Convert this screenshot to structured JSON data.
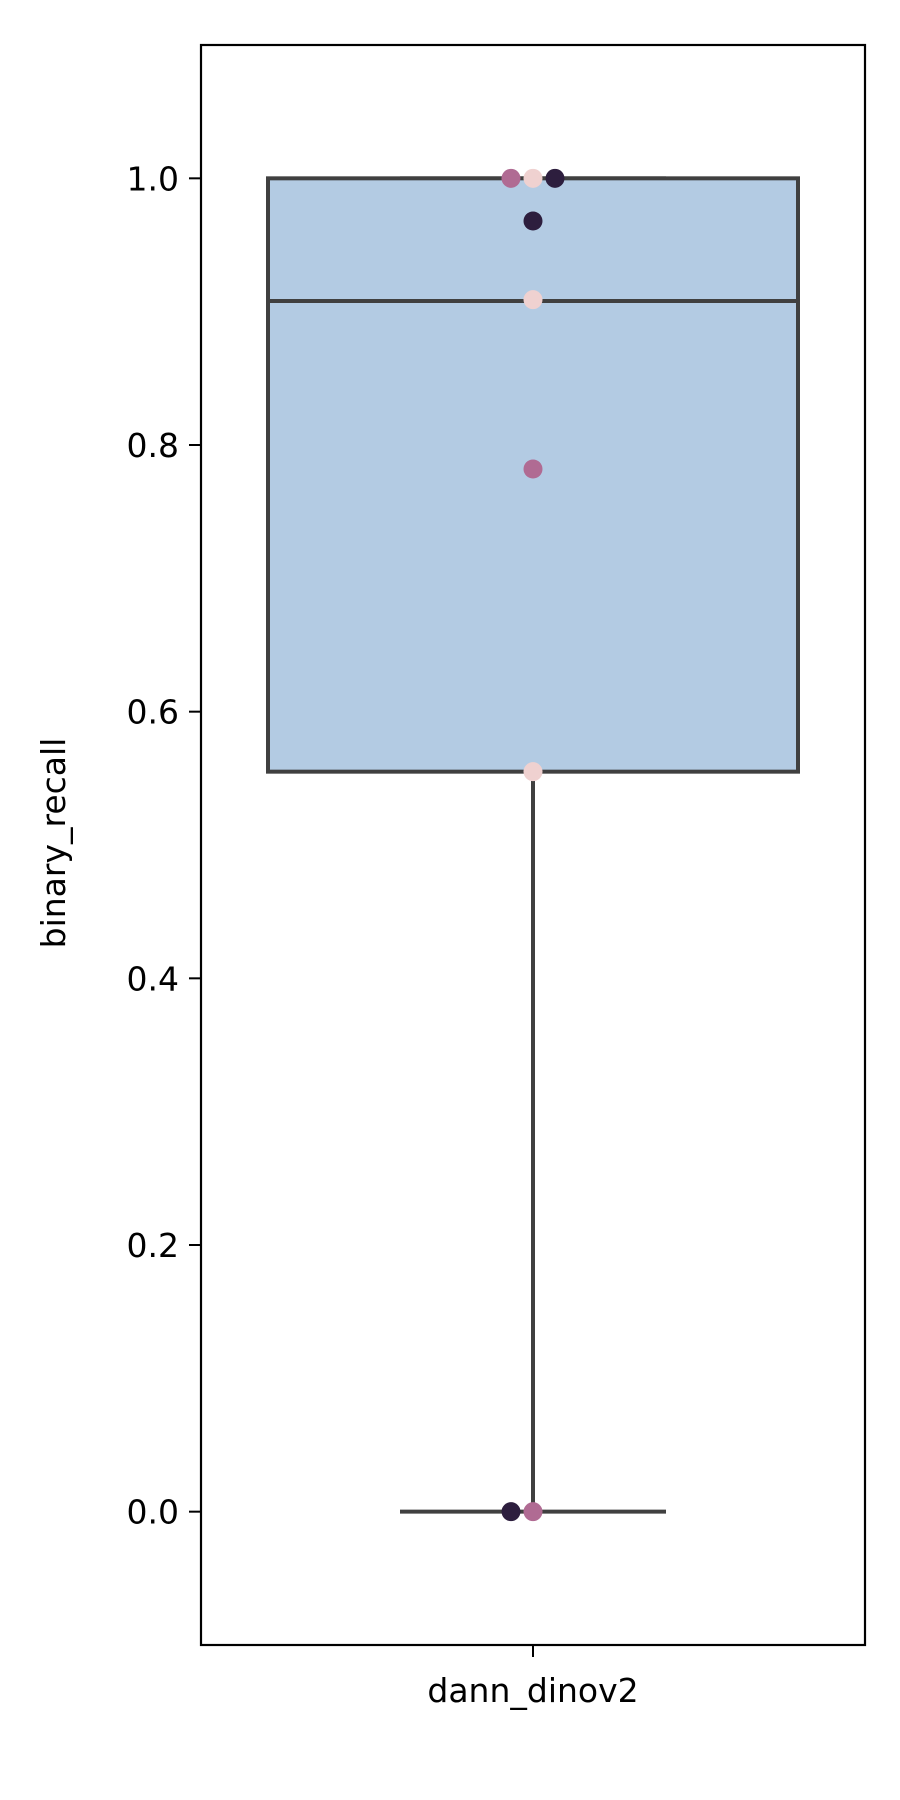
{
  "chart_data": {
    "type": "box",
    "title": "",
    "xlabel": "",
    "ylabel": "binary_recall",
    "categories": [
      "dann_dinov2"
    ],
    "ylim": [
      -0.1,
      1.1
    ],
    "yticks": [
      "0.0",
      "0.2",
      "0.4",
      "0.6",
      "0.8",
      "1.0"
    ],
    "grid": false,
    "box": {
      "q1": 0.555,
      "median": 0.908,
      "q3": 1.0,
      "whisker_low": 0.0,
      "whisker_high": 1.0,
      "fill_color": "#b3cbe3",
      "line_color": "#404040"
    },
    "points": [
      {
        "y": 1.0,
        "color": "#b06b93"
      },
      {
        "y": 1.0,
        "color": "#efd1d0"
      },
      {
        "y": 1.0,
        "color": "#2d1e3e"
      },
      {
        "y": 0.968,
        "color": "#2d1e3e"
      },
      {
        "y": 0.909,
        "color": "#efd1d0"
      },
      {
        "y": 0.782,
        "color": "#b06b93"
      },
      {
        "y": 0.555,
        "color": "#efd1d0"
      },
      {
        "y": 0.0,
        "color": "#2d1e3e"
      },
      {
        "y": 0.0,
        "color": "#b06b93"
      }
    ]
  }
}
